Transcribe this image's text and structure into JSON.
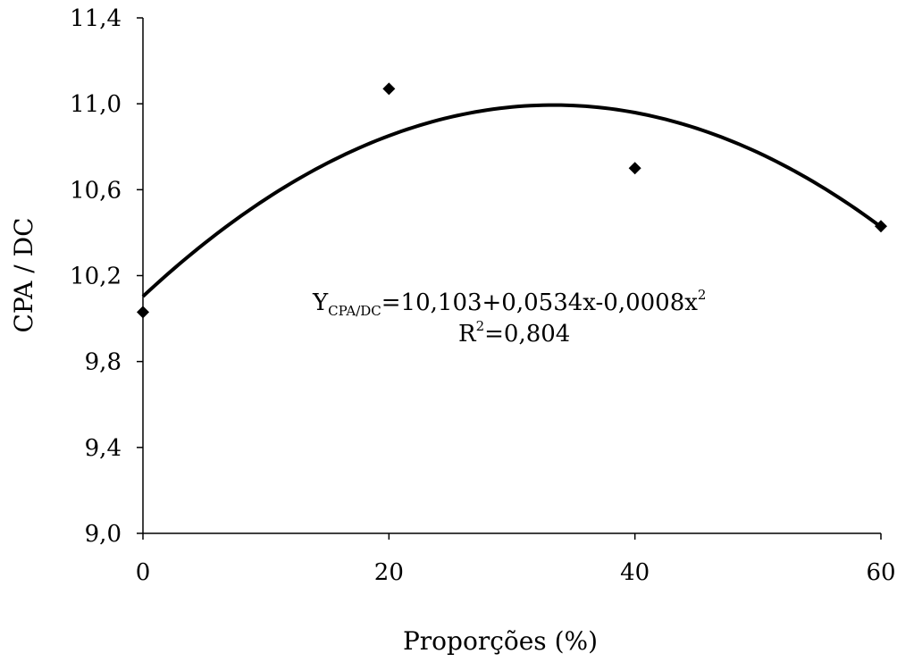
{
  "chart_data": {
    "type": "scatter",
    "xlabel": "Proporções (%)",
    "ylabel": "CPA / DC",
    "xlim": [
      0,
      60
    ],
    "ylim": [
      9.0,
      11.4
    ],
    "x_ticks": [
      0,
      20,
      40,
      60
    ],
    "x_tick_labels": [
      "0",
      "20",
      "40",
      "60"
    ],
    "y_ticks": [
      9.0,
      9.4,
      9.8,
      10.2,
      10.6,
      11.0,
      11.4
    ],
    "y_tick_labels": [
      "9,0",
      "9,4",
      "9,8",
      "10,2",
      "10,6",
      "11,0",
      "11,4"
    ],
    "grid": false,
    "series": [
      {
        "marker": "diamond",
        "color": "#000000",
        "points": [
          {
            "x": 0,
            "y": 10.03
          },
          {
            "x": 20,
            "y": 11.07
          },
          {
            "x": 40,
            "y": 10.7
          },
          {
            "x": 60,
            "y": 10.43
          }
        ]
      }
    ],
    "trendline": {
      "type": "quadratic",
      "coefficients": {
        "a": 10.103,
        "b": 0.0534,
        "c": -0.0008
      },
      "color": "#000000"
    },
    "annotation": {
      "eq_y": "Y",
      "eq_sub": "CPA/DC",
      "eq_rest": "=10,103+0,0534x-0,0008x",
      "eq_sup": "2",
      "r2_r": "R",
      "r2_sup": "2",
      "r2_rest": "=0,804"
    }
  }
}
